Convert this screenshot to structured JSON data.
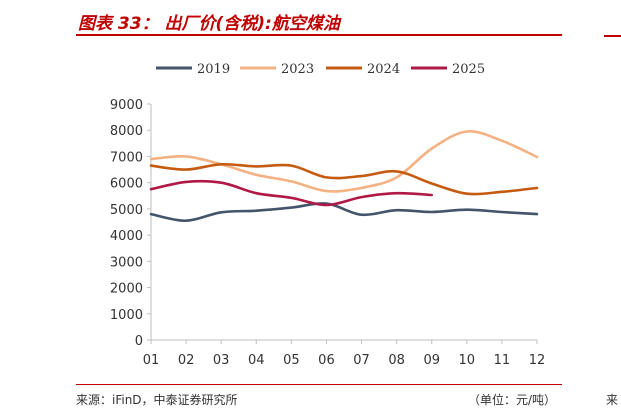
{
  "header": {
    "title": "图表 33：  出厂价(含税):航空煤油"
  },
  "footer": {
    "source": "来源：iFinD，中泰证券研究所",
    "unit": "（单位：元/吨）",
    "edge_note": "来"
  },
  "colors": {
    "accent": "#c00000",
    "axis": "#bfbfbf",
    "series": [
      "#44546a",
      "#f4b183",
      "#c55a11",
      "#b01846"
    ]
  },
  "chart_data": {
    "type": "line",
    "categories": [
      "01",
      "02",
      "03",
      "04",
      "05",
      "06",
      "07",
      "08",
      "09",
      "10",
      "11",
      "12"
    ],
    "title": "",
    "xlabel": "",
    "ylabel": "",
    "ylim": [
      0,
      9000
    ],
    "yticks": [
      "0",
      "1000",
      "2000",
      "3000",
      "4000",
      "5000",
      "6000",
      "7000",
      "8000",
      "9000"
    ],
    "grid": false,
    "legend_position": "top",
    "series": [
      {
        "name": "2019",
        "values": [
          4800,
          4550,
          4870,
          4930,
          5050,
          5200,
          4780,
          4950,
          4880,
          4970,
          4880,
          4800
        ]
      },
      {
        "name": "2023",
        "values": [
          6900,
          7000,
          6700,
          6300,
          6050,
          5680,
          5800,
          6200,
          7300,
          7950,
          7600,
          6980
        ]
      },
      {
        "name": "2024",
        "values": [
          6650,
          6500,
          6700,
          6620,
          6650,
          6200,
          6250,
          6430,
          5970,
          5580,
          5650,
          5800
        ]
      },
      {
        "name": "2025",
        "values": [
          5750,
          6030,
          6000,
          5600,
          5420,
          5150,
          5450,
          5600,
          5530,
          null,
          null,
          null
        ]
      }
    ]
  }
}
